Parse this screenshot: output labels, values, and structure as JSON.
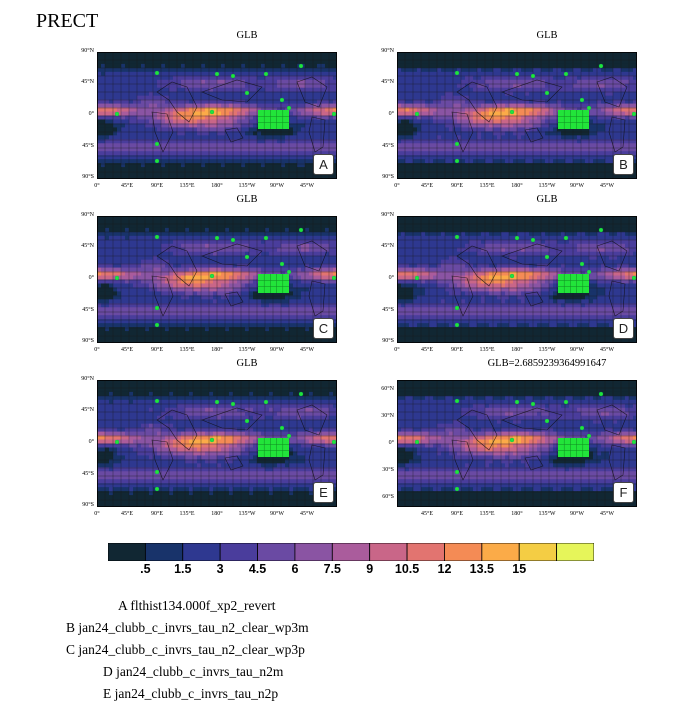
{
  "title": "PRECT",
  "colorbar": {
    "colors": [
      "#112733",
      "#18336a",
      "#2e3890",
      "#4a3d9c",
      "#6a4aa3",
      "#8a54a3",
      "#aa5c9c",
      "#c96688",
      "#e27470",
      "#f48b55",
      "#fbab48",
      "#f4cd44",
      "#e6f55a"
    ],
    "labels": [
      ".5",
      "1.5",
      "3",
      "4.5",
      "6",
      "7.5",
      "9",
      "10.5",
      "12",
      "13.5",
      "15"
    ]
  },
  "chart_data": [
    {
      "type": "heatmap",
      "panel": "A",
      "title": "GLB",
      "field": "PRECT",
      "y_ticks": [
        "90°N",
        "45°N",
        "0°",
        "45°S",
        "90°S"
      ],
      "x_ticks": [
        "0°",
        "45°E",
        "90°E",
        "135°E",
        "180°",
        "135°W",
        "90°W",
        "45°W"
      ],
      "colorbar_levels": [
        0.5,
        1.5,
        3,
        4.5,
        6,
        7.5,
        9,
        10.5,
        12,
        13.5,
        15
      ]
    },
    {
      "type": "heatmap",
      "panel": "B",
      "title": "GLB",
      "field": "PRECT",
      "y_ticks": [
        "90°N",
        "45°N",
        "0°",
        "45°S",
        "90°S"
      ],
      "x_ticks": [
        "0°",
        "45°E",
        "90°E",
        "135°E",
        "180°",
        "135°W",
        "90°W",
        "45°W"
      ],
      "colorbar_levels": [
        0.5,
        1.5,
        3,
        4.5,
        6,
        7.5,
        9,
        10.5,
        12,
        13.5,
        15
      ]
    },
    {
      "type": "heatmap",
      "panel": "C",
      "title": "GLB",
      "field": "PRECT",
      "y_ticks": [
        "90°N",
        "45°N",
        "0°",
        "45°S",
        "90°S"
      ],
      "x_ticks": [
        "0°",
        "45°E",
        "90°E",
        "135°E",
        "180°",
        "135°W",
        "90°W",
        "45°W"
      ],
      "colorbar_levels": [
        0.5,
        1.5,
        3,
        4.5,
        6,
        7.5,
        9,
        10.5,
        12,
        13.5,
        15
      ]
    },
    {
      "type": "heatmap",
      "panel": "D",
      "title": "GLB",
      "field": "PRECT",
      "y_ticks": [
        "90°N",
        "45°N",
        "0°",
        "45°S",
        "90°S"
      ],
      "x_ticks": [
        "0°",
        "45°E",
        "90°E",
        "135°E",
        "180°",
        "135°W",
        "90°W",
        "45°W"
      ],
      "colorbar_levels": [
        0.5,
        1.5,
        3,
        4.5,
        6,
        7.5,
        9,
        10.5,
        12,
        13.5,
        15
      ]
    },
    {
      "type": "heatmap",
      "panel": "E",
      "title": "GLB",
      "field": "PRECT",
      "y_ticks": [
        "90°N",
        "45°N",
        "0°",
        "45°S",
        "90°S"
      ],
      "x_ticks": [
        "0°",
        "45°E",
        "90°E",
        "135°E",
        "180°",
        "135°W",
        "90°W",
        "45°W"
      ],
      "colorbar_levels": [
        0.5,
        1.5,
        3,
        4.5,
        6,
        7.5,
        9,
        10.5,
        12,
        13.5,
        15
      ]
    },
    {
      "type": "heatmap",
      "panel": "F",
      "title": "GLB=2.6859239364991647",
      "field": "PRECT",
      "y_ticks": [
        "60°N",
        "30°N",
        "0°",
        "30°S",
        "60°S"
      ],
      "x_ticks": [
        "45°E",
        "90°E",
        "135°E",
        "180°",
        "135°W",
        "90°W",
        "45°W"
      ],
      "colorbar_levels": [
        0.5,
        1.5,
        3,
        4.5,
        6,
        7.5,
        9,
        10.5,
        12,
        13.5,
        15
      ]
    }
  ],
  "legend": [
    "A  flthist134.000f_xp2_revert",
    "B  jan24_clubb_c_invrs_tau_n2_clear_wp3m",
    "C  jan24_clubb_c_invrs_tau_n2_clear_wp3p",
    "D  jan24_clubb_c_invrs_tau_n2m",
    "E  jan24_clubb_c_invrs_tau_n2p"
  ]
}
